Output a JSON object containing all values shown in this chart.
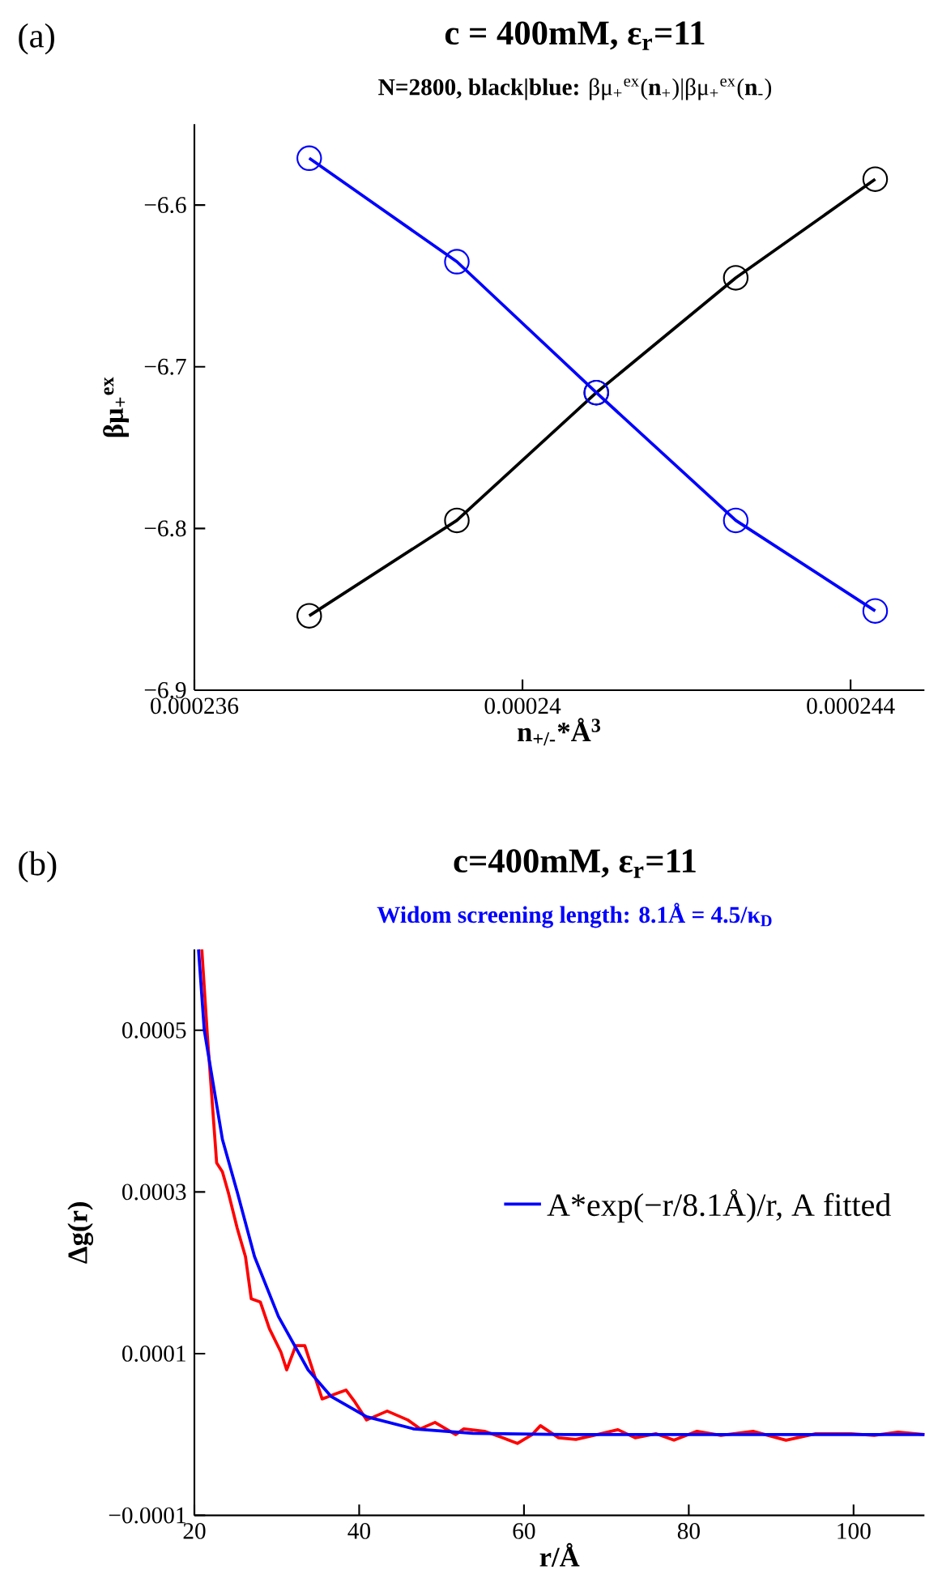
{
  "chart_data": [
    {
      "type": "line",
      "title": "**c = 400mM, ε$_{r}$=11**",
      "subtitle": "**N=2800, black|blue:** βμ$_{+}$$^{ex}$(**n**$_{+}$)|βμ$_{+}$$^{ex}$(**n**$_{-}$)",
      "xlabel": "n$_{+/-}$*Å$^{3}$",
      "ylabel": "βμ$_{+}$$^{ex}$",
      "annotations": [
        "(a)"
      ],
      "marker": "circle",
      "line_style": "solid",
      "xlim": [
        0.000236,
        0.0002449
      ],
      "xticks": [
        0.000236,
        0.00024,
        0.000244
      ],
      "ylim": [
        -6.9,
        -6.55
      ],
      "yticks": [
        {
          "value": -6.9,
          "label": "−6.9"
        },
        {
          "value": -6.8,
          "label": "−6.8"
        },
        {
          "value": -6.7,
          "label": "−6.7"
        },
        {
          "value": -6.6,
          "label": "−6.6"
        }
      ],
      "x": [
        0.0002374,
        0.0002392,
        0.0002409,
        0.0002426,
        0.0002443
      ],
      "series": [
        {
          "color": "#000000",
          "values": [
            -6.854,
            -6.795,
            -6.716,
            -6.645,
            -6.584
          ]
        },
        {
          "color": "#0000ff",
          "values": [
            -6.571,
            -6.635,
            -6.716,
            -6.795,
            -6.851
          ]
        }
      ]
    },
    {
      "type": "line",
      "title": "**c=400mM, ε$_{r}$=11**",
      "subtitle": "Widom screening length: 8.1Å = 4.5/κ$_{D}$",
      "xlabel": "r/Å",
      "ylabel": "Δg(r)",
      "annotations": [
        "(b)"
      ],
      "marker": "none",
      "line_style": "solid",
      "legend": "right",
      "xlim": [
        20,
        108.6
      ],
      "xticks": [
        20,
        40,
        60,
        80,
        100
      ],
      "ylim": [
        -0.0001,
        0.0006
      ],
      "yticks": [
        {
          "value": -0.0001,
          "label": "−0.0001"
        },
        0.0001,
        0.0003,
        0.0005
      ],
      "series": [
        {
          "color": "#ff0000",
          "x": [
            20.9,
            21.6,
            22.7,
            23.4,
            24.1,
            25.2,
            26.2,
            26.9,
            28,
            29.1,
            30.5,
            31.2,
            32.3,
            33.4,
            34.8,
            35.5,
            37.3,
            38.4,
            39.5,
            40.9,
            43.4,
            45.9,
            47.4,
            49.2,
            51.7,
            52.7,
            55.2,
            57.4,
            59.2,
            61,
            62,
            64.2,
            66.3,
            68.9,
            71.4,
            73.5,
            76,
            78.2,
            81,
            83.9,
            87.8,
            91.8,
            95.4,
            99.7,
            102.5,
            105.4,
            108.6
          ],
          "values": [
            0.0006,
            0.00049,
            0.000336,
            0.000325,
            0.0003,
            0.000255,
            0.00022,
            0.000168,
            0.000164,
            0.000131,
            0.000102,
            8e-05,
            0.00011,
            0.00011,
            6.6e-05,
            4.4e-05,
            5.1e-05,
            5.5e-05,
            4e-05,
            1.8e-05,
            2.9e-05,
            1.8e-05,
            7e-06,
            1.5e-05,
            0,
            7e-06,
            4e-06,
            -4e-06,
            -1.1e-05,
            0,
            1.1e-05,
            -4e-06,
            -6e-06,
            0,
            6e-06,
            -4e-06,
            1e-06,
            -7e-06,
            4e-06,
            -1e-06,
            4e-06,
            -7e-06,
            1e-06,
            1e-06,
            -1e-06,
            3e-06,
            0
          ]
        },
        {
          "name": "A*exp(−r/8.1Å)/r, A fitted",
          "color": "#0000ff",
          "x": [
            20.5,
            21.2,
            23.4,
            25.2,
            27.3,
            30.2,
            33.8,
            36.6,
            40.9,
            46.6,
            53.8,
            65,
            80,
            108.6
          ],
          "values": [
            0.0006,
            0.0005,
            0.000365,
            0.0003,
            0.00022,
            0.000146,
            8e-05,
            4.7e-05,
            2.2e-05,
            7e-06,
            1.5e-06,
            0,
            0,
            0
          ]
        }
      ]
    }
  ]
}
